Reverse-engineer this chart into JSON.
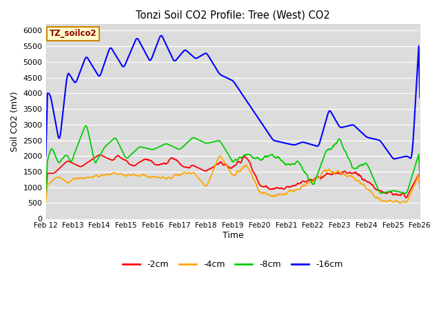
{
  "title": "Tonzi Soil CO2 Profile: Tree (West) CO2",
  "xlabel": "Time",
  "ylabel": "Soil CO2 (mV)",
  "ylim": [
    0,
    6200
  ],
  "yticks": [
    0,
    500,
    1000,
    1500,
    2000,
    2500,
    3000,
    3500,
    4000,
    4500,
    5000,
    5500,
    6000
  ],
  "bg_color": "#dcdcdc",
  "legend_label": "TZ_soilco2",
  "series_labels": [
    "-2cm",
    "-4cm",
    "-8cm",
    "-16cm"
  ],
  "series_colors": [
    "#ff0000",
    "#ffa500",
    "#00cc00",
    "#0000ff"
  ],
  "x_tick_labels": [
    "Feb 12",
    "Feb 13",
    "Feb 14",
    "Feb 15",
    "Feb 16",
    "Feb 17",
    "Feb 18",
    "Feb 19",
    "Feb 20",
    "Feb 21",
    "Feb 22",
    "Feb 23",
    "Feb 24",
    "Feb 25",
    "Feb 26"
  ],
  "num_points": 700
}
